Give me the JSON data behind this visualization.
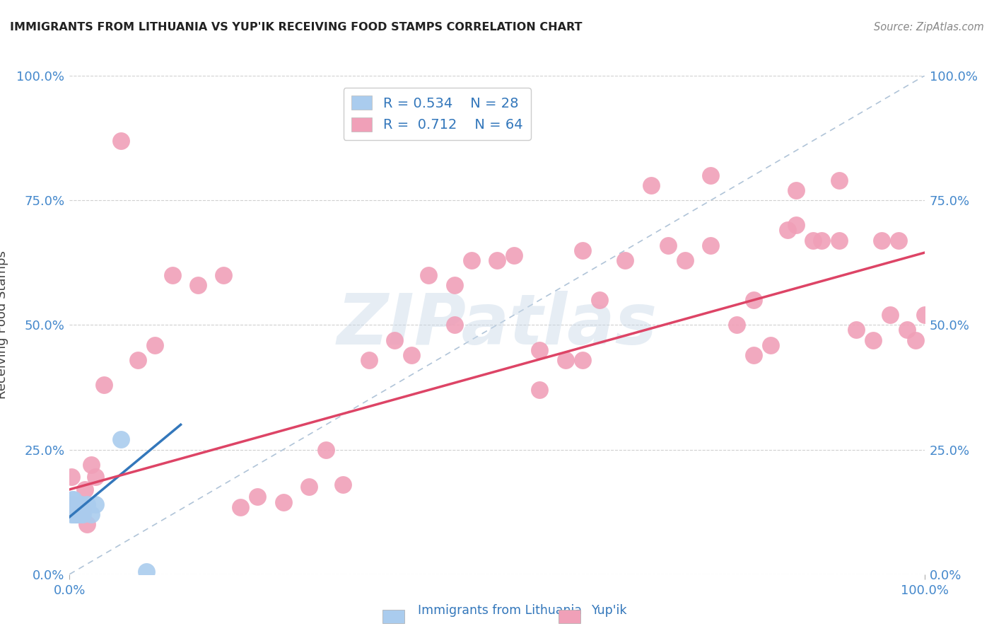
{
  "title": "IMMIGRANTS FROM LITHUANIA VS YUP'IK RECEIVING FOOD STAMPS CORRELATION CHART",
  "source": "Source: ZipAtlas.com",
  "ylabel": "Receiving Food Stamps",
  "xmin": 0.0,
  "xmax": 1.0,
  "ymin": 0.0,
  "ymax": 1.0,
  "ytick_values": [
    0.0,
    0.25,
    0.5,
    0.75,
    1.0
  ],
  "ytick_labels": [
    "0.0%",
    "25.0%",
    "50.0%",
    "75.0%",
    "100.0%"
  ],
  "grid_color": "#d0d0d0",
  "watermark_text": "ZIPatlas",
  "scatter_blue_color": "#aaccee",
  "scatter_pink_color": "#f0a0b8",
  "line_blue_color": "#3377bb",
  "line_pink_color": "#dd4466",
  "diag_line_color": "#b0c4d8",
  "blue_r": "0.534",
  "blue_n": "28",
  "pink_r": "0.712",
  "pink_n": "64",
  "blue_points_x": [
    0.001,
    0.002,
    0.002,
    0.003,
    0.003,
    0.004,
    0.004,
    0.005,
    0.005,
    0.006,
    0.006,
    0.007,
    0.007,
    0.008,
    0.008,
    0.009,
    0.01,
    0.011,
    0.012,
    0.013,
    0.014,
    0.015,
    0.017,
    0.02,
    0.025,
    0.03,
    0.06,
    0.09
  ],
  "blue_points_y": [
    0.13,
    0.14,
    0.12,
    0.13,
    0.15,
    0.12,
    0.14,
    0.13,
    0.15,
    0.12,
    0.14,
    0.13,
    0.12,
    0.14,
    0.13,
    0.12,
    0.13,
    0.14,
    0.12,
    0.13,
    0.14,
    0.12,
    0.13,
    0.14,
    0.12,
    0.14,
    0.27,
    0.005
  ],
  "pink_points_x": [
    0.002,
    0.004,
    0.006,
    0.008,
    0.01,
    0.012,
    0.015,
    0.018,
    0.02,
    0.025,
    0.03,
    0.04,
    0.06,
    0.08,
    0.1,
    0.12,
    0.15,
    0.18,
    0.2,
    0.22,
    0.25,
    0.3,
    0.35,
    0.4,
    0.42,
    0.45,
    0.47,
    0.5,
    0.52,
    0.55,
    0.58,
    0.6,
    0.62,
    0.65,
    0.68,
    0.7,
    0.72,
    0.75,
    0.78,
    0.8,
    0.82,
    0.84,
    0.85,
    0.87,
    0.88,
    0.9,
    0.92,
    0.94,
    0.95,
    0.96,
    0.97,
    0.98,
    0.99,
    1.0,
    0.75,
    0.8,
    0.85,
    0.9,
    0.6,
    0.55,
    0.45,
    0.38,
    0.32,
    0.28
  ],
  "pink_points_y": [
    0.195,
    0.14,
    0.13,
    0.12,
    0.135,
    0.14,
    0.13,
    0.17,
    0.1,
    0.22,
    0.195,
    0.38,
    0.87,
    0.43,
    0.46,
    0.6,
    0.58,
    0.6,
    0.135,
    0.155,
    0.145,
    0.25,
    0.43,
    0.44,
    0.6,
    0.58,
    0.63,
    0.63,
    0.64,
    0.37,
    0.43,
    0.65,
    0.55,
    0.63,
    0.78,
    0.66,
    0.63,
    0.66,
    0.5,
    0.44,
    0.46,
    0.69,
    0.7,
    0.67,
    0.67,
    0.67,
    0.49,
    0.47,
    0.67,
    0.52,
    0.67,
    0.49,
    0.47,
    0.52,
    0.8,
    0.55,
    0.77,
    0.79,
    0.43,
    0.45,
    0.5,
    0.47,
    0.18,
    0.175
  ],
  "blue_line_x0": 0.0,
  "blue_line_x1": 0.13,
  "pink_line_x0": 0.0,
  "pink_line_x1": 1.0,
  "blue_line_y0": 0.115,
  "blue_line_y1": 0.3,
  "pink_line_y0": 0.17,
  "pink_line_y1": 0.645
}
